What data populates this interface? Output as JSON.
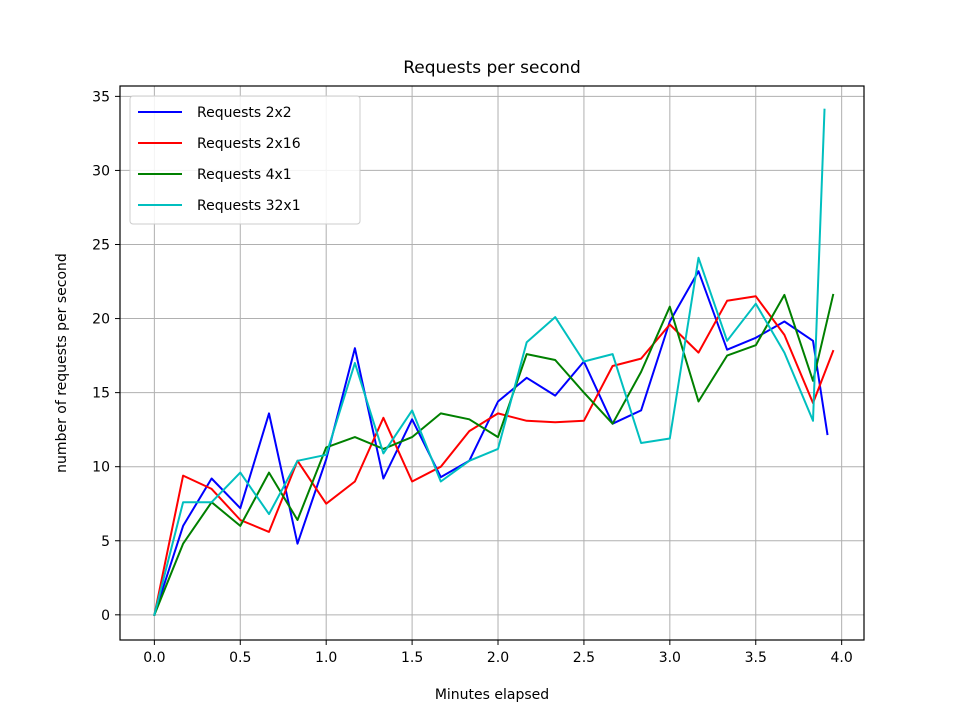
{
  "chart_data": {
    "type": "line",
    "title": "Requests per second",
    "xlabel": "Minutes elapsed",
    "ylabel": "number of requests per second",
    "xlim": [
      -0.2,
      4.13
    ],
    "ylim": [
      -1.7,
      35.7
    ],
    "xticks": [
      0.0,
      0.5,
      1.0,
      1.5,
      2.0,
      2.5,
      3.0,
      3.5,
      4.0
    ],
    "xtick_labels": [
      "0.0",
      "0.5",
      "1.0",
      "1.5",
      "2.0",
      "2.5",
      "3.0",
      "3.5",
      "4.0"
    ],
    "yticks": [
      0,
      5,
      10,
      15,
      20,
      25,
      30,
      35
    ],
    "ytick_labels": [
      "0",
      "5",
      "10",
      "15",
      "20",
      "25",
      "30",
      "35"
    ],
    "grid": true,
    "legend_position": "top-left",
    "series": [
      {
        "name": "Requests 2x2",
        "color": "#0000ff",
        "x": [
          0,
          0.167,
          0.333,
          0.5,
          0.667,
          0.833,
          1.0,
          1.167,
          1.333,
          1.5,
          1.667,
          1.833,
          2.0,
          2.167,
          2.333,
          2.5,
          2.667,
          2.833,
          3.0,
          3.167,
          3.333,
          3.5,
          3.667,
          3.833,
          3.917
        ],
        "y": [
          0,
          6.0,
          9.2,
          7.2,
          13.6,
          4.8,
          10.5,
          18.0,
          9.2,
          13.2,
          9.3,
          10.4,
          14.4,
          16.0,
          14.8,
          17.1,
          12.9,
          13.8,
          19.8,
          23.2,
          17.9,
          18.7,
          19.8,
          18.5,
          12.2
        ]
      },
      {
        "name": "Requests 2x16",
        "color": "#ff0000",
        "x": [
          0,
          0.167,
          0.333,
          0.5,
          0.667,
          0.833,
          1.0,
          1.167,
          1.333,
          1.5,
          1.667,
          1.833,
          2.0,
          2.167,
          2.333,
          2.5,
          2.667,
          2.833,
          3.0,
          3.167,
          3.333,
          3.5,
          3.667,
          3.833,
          3.95
        ],
        "y": [
          0,
          9.4,
          8.5,
          6.4,
          5.6,
          10.4,
          7.5,
          9.0,
          13.3,
          9.0,
          10.0,
          12.4,
          13.6,
          13.1,
          13.0,
          13.1,
          16.8,
          17.3,
          19.6,
          17.7,
          21.2,
          21.5,
          18.9,
          14.3,
          17.8
        ]
      },
      {
        "name": "Requests 4x1",
        "color": "#008000",
        "x": [
          0,
          0.167,
          0.333,
          0.5,
          0.667,
          0.833,
          1.0,
          1.167,
          1.333,
          1.5,
          1.667,
          1.833,
          2.0,
          2.167,
          2.333,
          2.5,
          2.667,
          2.833,
          3.0,
          3.167,
          3.333,
          3.5,
          3.667,
          3.833,
          3.95
        ],
        "y": [
          0,
          4.8,
          7.6,
          6.0,
          9.6,
          6.4,
          11.3,
          12.0,
          11.2,
          12.0,
          13.6,
          13.2,
          12.0,
          17.6,
          17.2,
          15.0,
          12.9,
          16.4,
          20.8,
          14.4,
          17.5,
          18.2,
          21.6,
          15.8,
          21.6
        ]
      },
      {
        "name": "Requests 32x1",
        "color": "#00bfbf",
        "x": [
          0,
          0.167,
          0.333,
          0.5,
          0.667,
          0.833,
          1.0,
          1.167,
          1.333,
          1.5,
          1.667,
          1.833,
          2.0,
          2.167,
          2.333,
          2.5,
          2.667,
          2.833,
          3.0,
          3.167,
          3.333,
          3.5,
          3.667,
          3.833,
          3.9
        ],
        "y": [
          0,
          7.6,
          7.6,
          9.6,
          6.8,
          10.4,
          10.8,
          17.0,
          10.9,
          13.8,
          9.0,
          10.4,
          11.2,
          18.4,
          20.1,
          17.1,
          17.6,
          11.6,
          11.9,
          24.1,
          18.5,
          21.0,
          17.7,
          13.1,
          34.1
        ]
      }
    ]
  }
}
